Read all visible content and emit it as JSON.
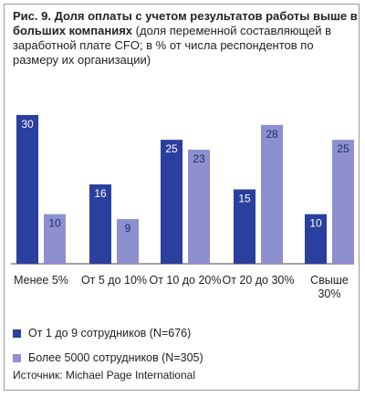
{
  "title": {
    "bold_part": "Рис. 9. Доля оплаты с учетом результатов работы выше в больших компаниях",
    "normal_part": "(доля переменной составляющей в заработной плате CFO; в % от числа респондентов по размеру их организации)"
  },
  "source": "Источник: Michael Page International",
  "colors": {
    "series1": "#2b3f9e",
    "series2": "#8d8fcf",
    "frame": "#9a9a9a"
  },
  "chart_data": {
    "type": "bar",
    "categories": [
      "Менее 5%",
      "От 5 до 10%",
      "От 10 до 20%",
      "От 20 до 30%",
      "Свыше 30%"
    ],
    "category_label_lines": [
      [
        "Менее 5%"
      ],
      [
        "От 5 до 10%"
      ],
      [
        "От 10 до 20%"
      ],
      [
        "От 20 до 30%"
      ],
      [
        "Свыше",
        "30%"
      ]
    ],
    "series": [
      {
        "name": "От 1 до 9 сотрудников (N=676)",
        "values": [
          30,
          16,
          25,
          15,
          10
        ]
      },
      {
        "name": "Более 5000 сотрудников (N=305)",
        "values": [
          10,
          9,
          23,
          28,
          25
        ]
      }
    ],
    "ylim": [
      0,
      30
    ],
    "legend_position": "bottom",
    "grid": false,
    "data_labels": true
  }
}
